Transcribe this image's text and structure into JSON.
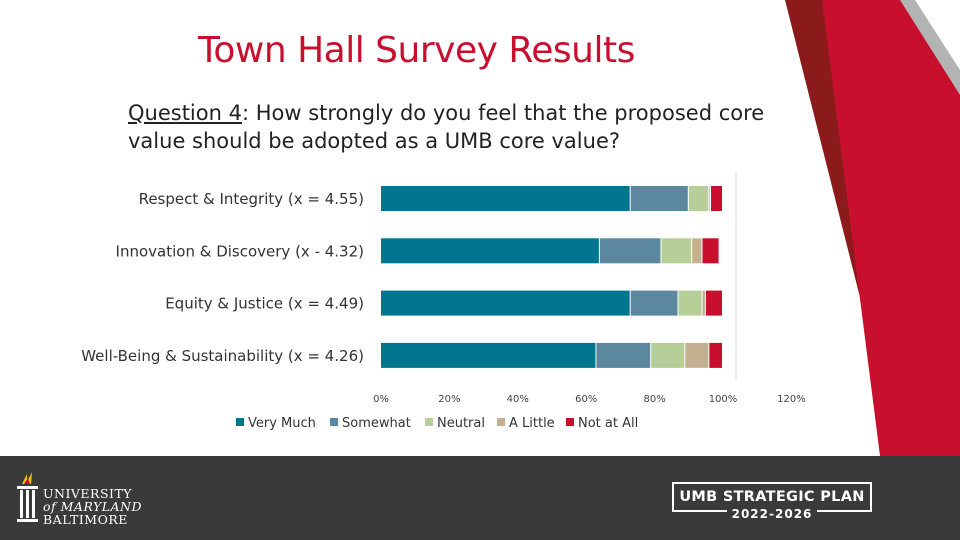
{
  "slide": {
    "title": "Town Hall Survey Results",
    "question_label": "Question 4",
    "question_text": ": How strongly do you feel that the proposed core value should be adopted as a UMB core value?"
  },
  "colors": {
    "title": "#c8102e",
    "footer": "#3a3a3a",
    "accent_red": "#c8102e",
    "accent_dark_red": "#8b1a1a",
    "accent_gray": "#b3b3b3"
  },
  "footer": {
    "logo_lines": [
      "UNIVERSITY",
      "of MARYLAND",
      "BALTIMORE"
    ],
    "plan_title": "UMB STRATEGIC PLAN",
    "plan_years": "2022-2026"
  },
  "chart_data": {
    "type": "bar",
    "orientation": "horizontal",
    "stacked": true,
    "categories": [
      "Respect & Integrity (x = 4.55)",
      "Innovation & Discovery (x - 4.32)",
      "Equity & Justice (x = 4.49)",
      "Well-Being & Sustainability (x = 4.26)"
    ],
    "series": [
      {
        "name": "Very Much",
        "color": "#00758f",
        "values": [
          73,
          64,
          73,
          63
        ]
      },
      {
        "name": "Somewhat",
        "color": "#5b879f",
        "values": [
          17,
          18,
          14,
          16
        ]
      },
      {
        "name": "Neutral",
        "color": "#b6cf98",
        "values": [
          6,
          9,
          7,
          10
        ]
      },
      {
        "name": "A Little",
        "color": "#c4b090",
        "values": [
          0.5,
          3,
          1,
          7
        ]
      },
      {
        "name": "Not at All",
        "color": "#c8102e",
        "values": [
          3.5,
          5,
          5,
          4
        ]
      }
    ],
    "xlim": [
      0,
      120
    ],
    "xticks": [
      "0%",
      "20%",
      "40%",
      "60%",
      "80%",
      "100%",
      "120%"
    ],
    "legend_position": "bottom",
    "grid": false
  }
}
